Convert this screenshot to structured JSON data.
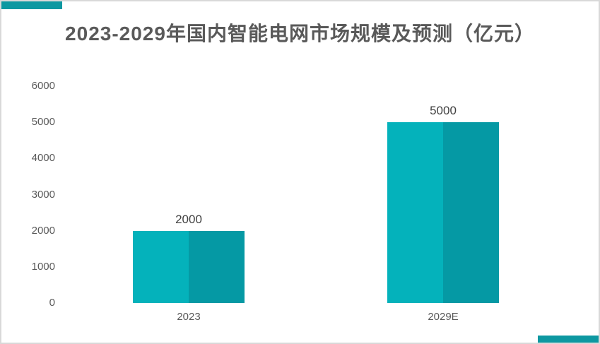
{
  "page": {
    "background_color": "#ffffff",
    "border_color": "#d9d9d9",
    "accent_color": "#0d98a1"
  },
  "title": {
    "text": "2023-2029年国内智能电网市场规模及预测（亿元）",
    "color": "#595959"
  },
  "chart_data": {
    "type": "bar",
    "title": "2023-2029年国内智能电网市场规模及预测（亿元）",
    "unit": "亿元",
    "categories": [
      "2023",
      "2029E"
    ],
    "values": [
      2000,
      5000
    ],
    "data_labels": [
      "2000",
      "5000"
    ],
    "yticks": [
      "0",
      "1000",
      "2000",
      "3000",
      "4000",
      "5000",
      "6000"
    ],
    "ytick_values": [
      0,
      1000,
      2000,
      3000,
      4000,
      5000,
      6000
    ],
    "ylim": [
      0,
      6000
    ],
    "xlabel": "",
    "ylabel": "",
    "grid": false,
    "legend": "none",
    "bar_color_left": "#04b2bb",
    "bar_color_right": "#0599a4",
    "data_label_color": "#404040",
    "axis_text_color": "#595959"
  }
}
